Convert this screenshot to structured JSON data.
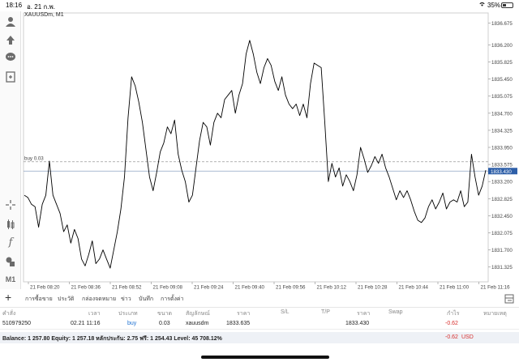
{
  "status_bar": {
    "time": "18:16",
    "date": "อ. 21 ก.พ.",
    "wifi_icon": "wifi-icon",
    "battery_percent": "35%"
  },
  "left_toolbar": {
    "top_icons": [
      "account-icon",
      "trade-icon",
      "chat-icon",
      "news-icon"
    ],
    "bottom_icons": [
      "crosshair-icon",
      "chart-type-icon",
      "indicators-icon",
      "objects-icon"
    ],
    "timeframe": "M1",
    "fx_label": "f"
  },
  "chart": {
    "symbol_label": "XAUUSDm, M1",
    "buy_label": "buy 0.03",
    "current_price_label": "1833.430",
    "colors": {
      "price_line": "#000000",
      "grid": "#e6e6e6",
      "buy_line": "#9a9a9a",
      "price_tag": "#2e5fa8"
    }
  },
  "chart_data": {
    "type": "line",
    "title": "XAUUSDm, M1",
    "xlabel": "",
    "ylabel": "",
    "ylim": [
      1831.0,
      1836.9
    ],
    "y_ticks": [
      "1836.675",
      "1836.200",
      "1835.825",
      "1835.450",
      "1835.075",
      "1834.700",
      "1834.325",
      "1833.950",
      "1833.575",
      "1833.200",
      "1832.825",
      "1832.450",
      "1832.075",
      "1831.700",
      "1831.325"
    ],
    "x_ticks": [
      "21 Feb 08:20",
      "21 Feb 08:36",
      "21 Feb 08:52",
      "21 Feb 09:08",
      "21 Feb 09:24",
      "21 Feb 09:40",
      "21 Feb 09:56",
      "21 Feb 10:12",
      "21 Feb 10:28",
      "21 Feb 10:44",
      "21 Feb 11:00",
      "21 Feb 11:16"
    ],
    "buy_price": 1833.635,
    "current_price": 1833.43,
    "series": [
      {
        "values": [
          1832.9,
          1832.85,
          1832.7,
          1832.65,
          1832.2,
          1832.7,
          1832.9,
          1833.65,
          1832.9,
          1832.7,
          1832.5,
          1832.1,
          1832.25,
          1831.85,
          1832.15,
          1831.95,
          1831.5,
          1831.35,
          1831.6,
          1831.9,
          1831.4,
          1831.5,
          1831.7,
          1831.5,
          1831.3,
          1831.7,
          1832.1,
          1832.6,
          1833.3,
          1834.6,
          1835.5,
          1835.3,
          1834.95,
          1834.5,
          1833.9,
          1833.3,
          1833.0,
          1833.4,
          1833.85,
          1834.05,
          1834.4,
          1834.25,
          1834.55,
          1833.8,
          1833.45,
          1833.2,
          1832.75,
          1832.9,
          1833.5,
          1834.1,
          1834.5,
          1834.4,
          1834.0,
          1834.5,
          1834.7,
          1834.6,
          1835.0,
          1835.1,
          1835.2,
          1834.7,
          1835.1,
          1835.35,
          1836.0,
          1836.3,
          1836.0,
          1835.6,
          1835.35,
          1835.7,
          1835.9,
          1835.75,
          1835.4,
          1835.2,
          1835.5,
          1835.1,
          1834.9,
          1834.8,
          1834.9,
          1834.65,
          1834.9,
          1834.6,
          1835.35,
          1835.8,
          1835.75,
          1835.7,
          1834.5,
          1833.2,
          1833.6,
          1833.3,
          1833.5,
          1833.1,
          1833.35,
          1833.2,
          1833.0,
          1833.35,
          1833.95,
          1833.7,
          1833.4,
          1833.55,
          1833.75,
          1833.6,
          1833.8,
          1833.5,
          1833.3,
          1833.05,
          1832.8,
          1833.0,
          1832.85,
          1833.0,
          1832.8,
          1832.55,
          1832.35,
          1832.3,
          1832.4,
          1832.65,
          1832.8,
          1832.6,
          1832.75,
          1832.95,
          1832.6,
          1832.75,
          1832.8,
          1832.75,
          1833.0,
          1832.65,
          1832.75,
          1833.8,
          1833.3,
          1832.9,
          1833.1,
          1833.45
        ]
      }
    ]
  },
  "tabs": [
    {
      "label": "การซื้อขาย",
      "active": true
    },
    {
      "label": "ประวัติ",
      "active": false
    },
    {
      "label": "กล่องจดหมาย",
      "active": false
    },
    {
      "label": "ข่าว",
      "active": false
    },
    {
      "label": "บันทึก",
      "active": false
    },
    {
      "label": "การตั้งค่า",
      "active": false
    }
  ],
  "table": {
    "headers": [
      "คำสั่ง",
      "เวลา",
      "ประเภท",
      "ขนาด",
      "สัญลักษณ์",
      "ราคา",
      "S/L",
      "T/P",
      "ราคา",
      "Swap",
      "กำไร",
      "หมายเหตุ"
    ],
    "row": {
      "order": "510979250",
      "time": "02.21 11:16",
      "type": "buy",
      "size": "0.03",
      "symbol": "xauusdm",
      "price": "1833.635",
      "current": "1833.430",
      "profit": "-0.62"
    }
  },
  "balance": {
    "text": "Balance: 1 257.80 Equity: 1 257.18 หลักประกัน: 2.75 ฟรี: 1 254.43 Level: 45 708.12%",
    "profit": "-0.62",
    "currency": "USD"
  }
}
